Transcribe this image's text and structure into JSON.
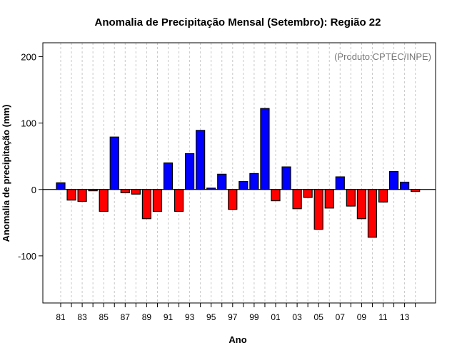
{
  "chart_data": {
    "type": "bar",
    "title": "Anomalia de Precipitação Mensal (Setembro): Região 22",
    "xlabel": "Ano",
    "ylabel": "Anomalia de precipitação (mm)",
    "annotation": "(Produto:CPTEC/INPE)",
    "ylim": [
      -171,
      221
    ],
    "yticks": [
      -100,
      0,
      100,
      200
    ],
    "grid": "vertical dashed at each year",
    "years": [
      1981,
      1982,
      1983,
      1984,
      1985,
      1986,
      1987,
      1988,
      1989,
      1990,
      1991,
      1992,
      1993,
      1994,
      1995,
      1996,
      1997,
      1998,
      1999,
      2000,
      2001,
      2002,
      2003,
      2004,
      2005,
      2006,
      2007,
      2008,
      2009,
      2010,
      2011,
      2012,
      2013,
      2014
    ],
    "xtick_labels": [
      "81",
      "83",
      "85",
      "87",
      "89",
      "91",
      "93",
      "95",
      "97",
      "99",
      "01",
      "03",
      "05",
      "07",
      "09",
      "11",
      "13"
    ],
    "values": [
      10,
      -16,
      -18,
      -2,
      -33,
      79,
      -5,
      -7,
      -44,
      -33,
      40,
      -33,
      54,
      89,
      2,
      23,
      -30,
      12,
      24,
      122,
      -17,
      34,
      -29,
      -12,
      -60,
      -28,
      19,
      -25,
      -44,
      -72,
      -19,
      27,
      11,
      -3
    ],
    "positive_color": "#0000ff",
    "negative_color": "#ff0000"
  }
}
